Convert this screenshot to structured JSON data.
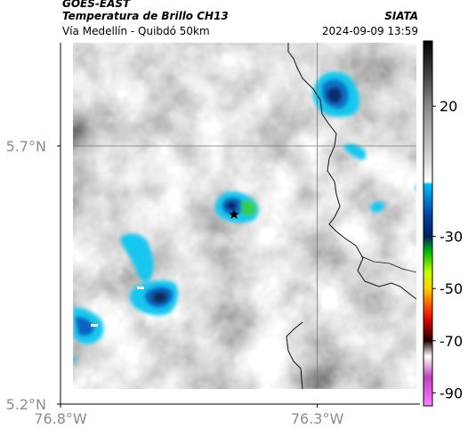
{
  "header": {
    "satellite": "GOES-EAST",
    "title": "Temperatura de Brillo CH13",
    "organization": "SIATA",
    "subtitle": "Vía Medellín - Quibdó 50km",
    "timestamp": "2024-09-09 13:59"
  },
  "map": {
    "lon_range": [
      -76.8,
      -76.1
    ],
    "lat_range": [
      5.2,
      5.9
    ],
    "x_ticks": [
      {
        "value": -76.8,
        "label": "76.8°W"
      },
      {
        "value": -76.3,
        "label": "76.3°W"
      }
    ],
    "y_ticks": [
      {
        "value": 5.7,
        "label": "5.7°N"
      },
      {
        "value": 5.2,
        "label": "5.2°N"
      }
    ],
    "crosshair": {
      "lon": -76.3,
      "lat": 5.7
    },
    "marker_icon": "star-icon"
  },
  "colorbar": {
    "ticks": [
      {
        "value": 20,
        "label": "20"
      },
      {
        "value": -30,
        "label": "-30"
      },
      {
        "value": -50,
        "label": "-50"
      },
      {
        "value": -70,
        "label": "-70"
      },
      {
        "value": -90,
        "label": "-90"
      }
    ],
    "range": [
      -95,
      45
    ],
    "stops": [
      {
        "value": 45,
        "color": "#000000"
      },
      {
        "value": 30,
        "color": "#4d4d4d"
      },
      {
        "value": 20,
        "color": "#8a8a8a"
      },
      {
        "value": 0,
        "color": "#d4d4d4"
      },
      {
        "value": -9,
        "color": "#ffffff"
      },
      {
        "value": -10,
        "color": "#00bfff"
      },
      {
        "value": -22,
        "color": "#0040a0"
      },
      {
        "value": -30,
        "color": "#002060"
      },
      {
        "value": -36,
        "color": "#00c000"
      },
      {
        "value": -44,
        "color": "#c8ff00"
      },
      {
        "value": -50,
        "color": "#ffd000"
      },
      {
        "value": -56,
        "color": "#ff6000"
      },
      {
        "value": -62,
        "color": "#e00000"
      },
      {
        "value": -70,
        "color": "#200000"
      },
      {
        "value": -76,
        "color": "#ffffff"
      },
      {
        "value": -84,
        "color": "#c040c0"
      },
      {
        "value": -95,
        "color": "#ff80ff"
      }
    ]
  }
}
